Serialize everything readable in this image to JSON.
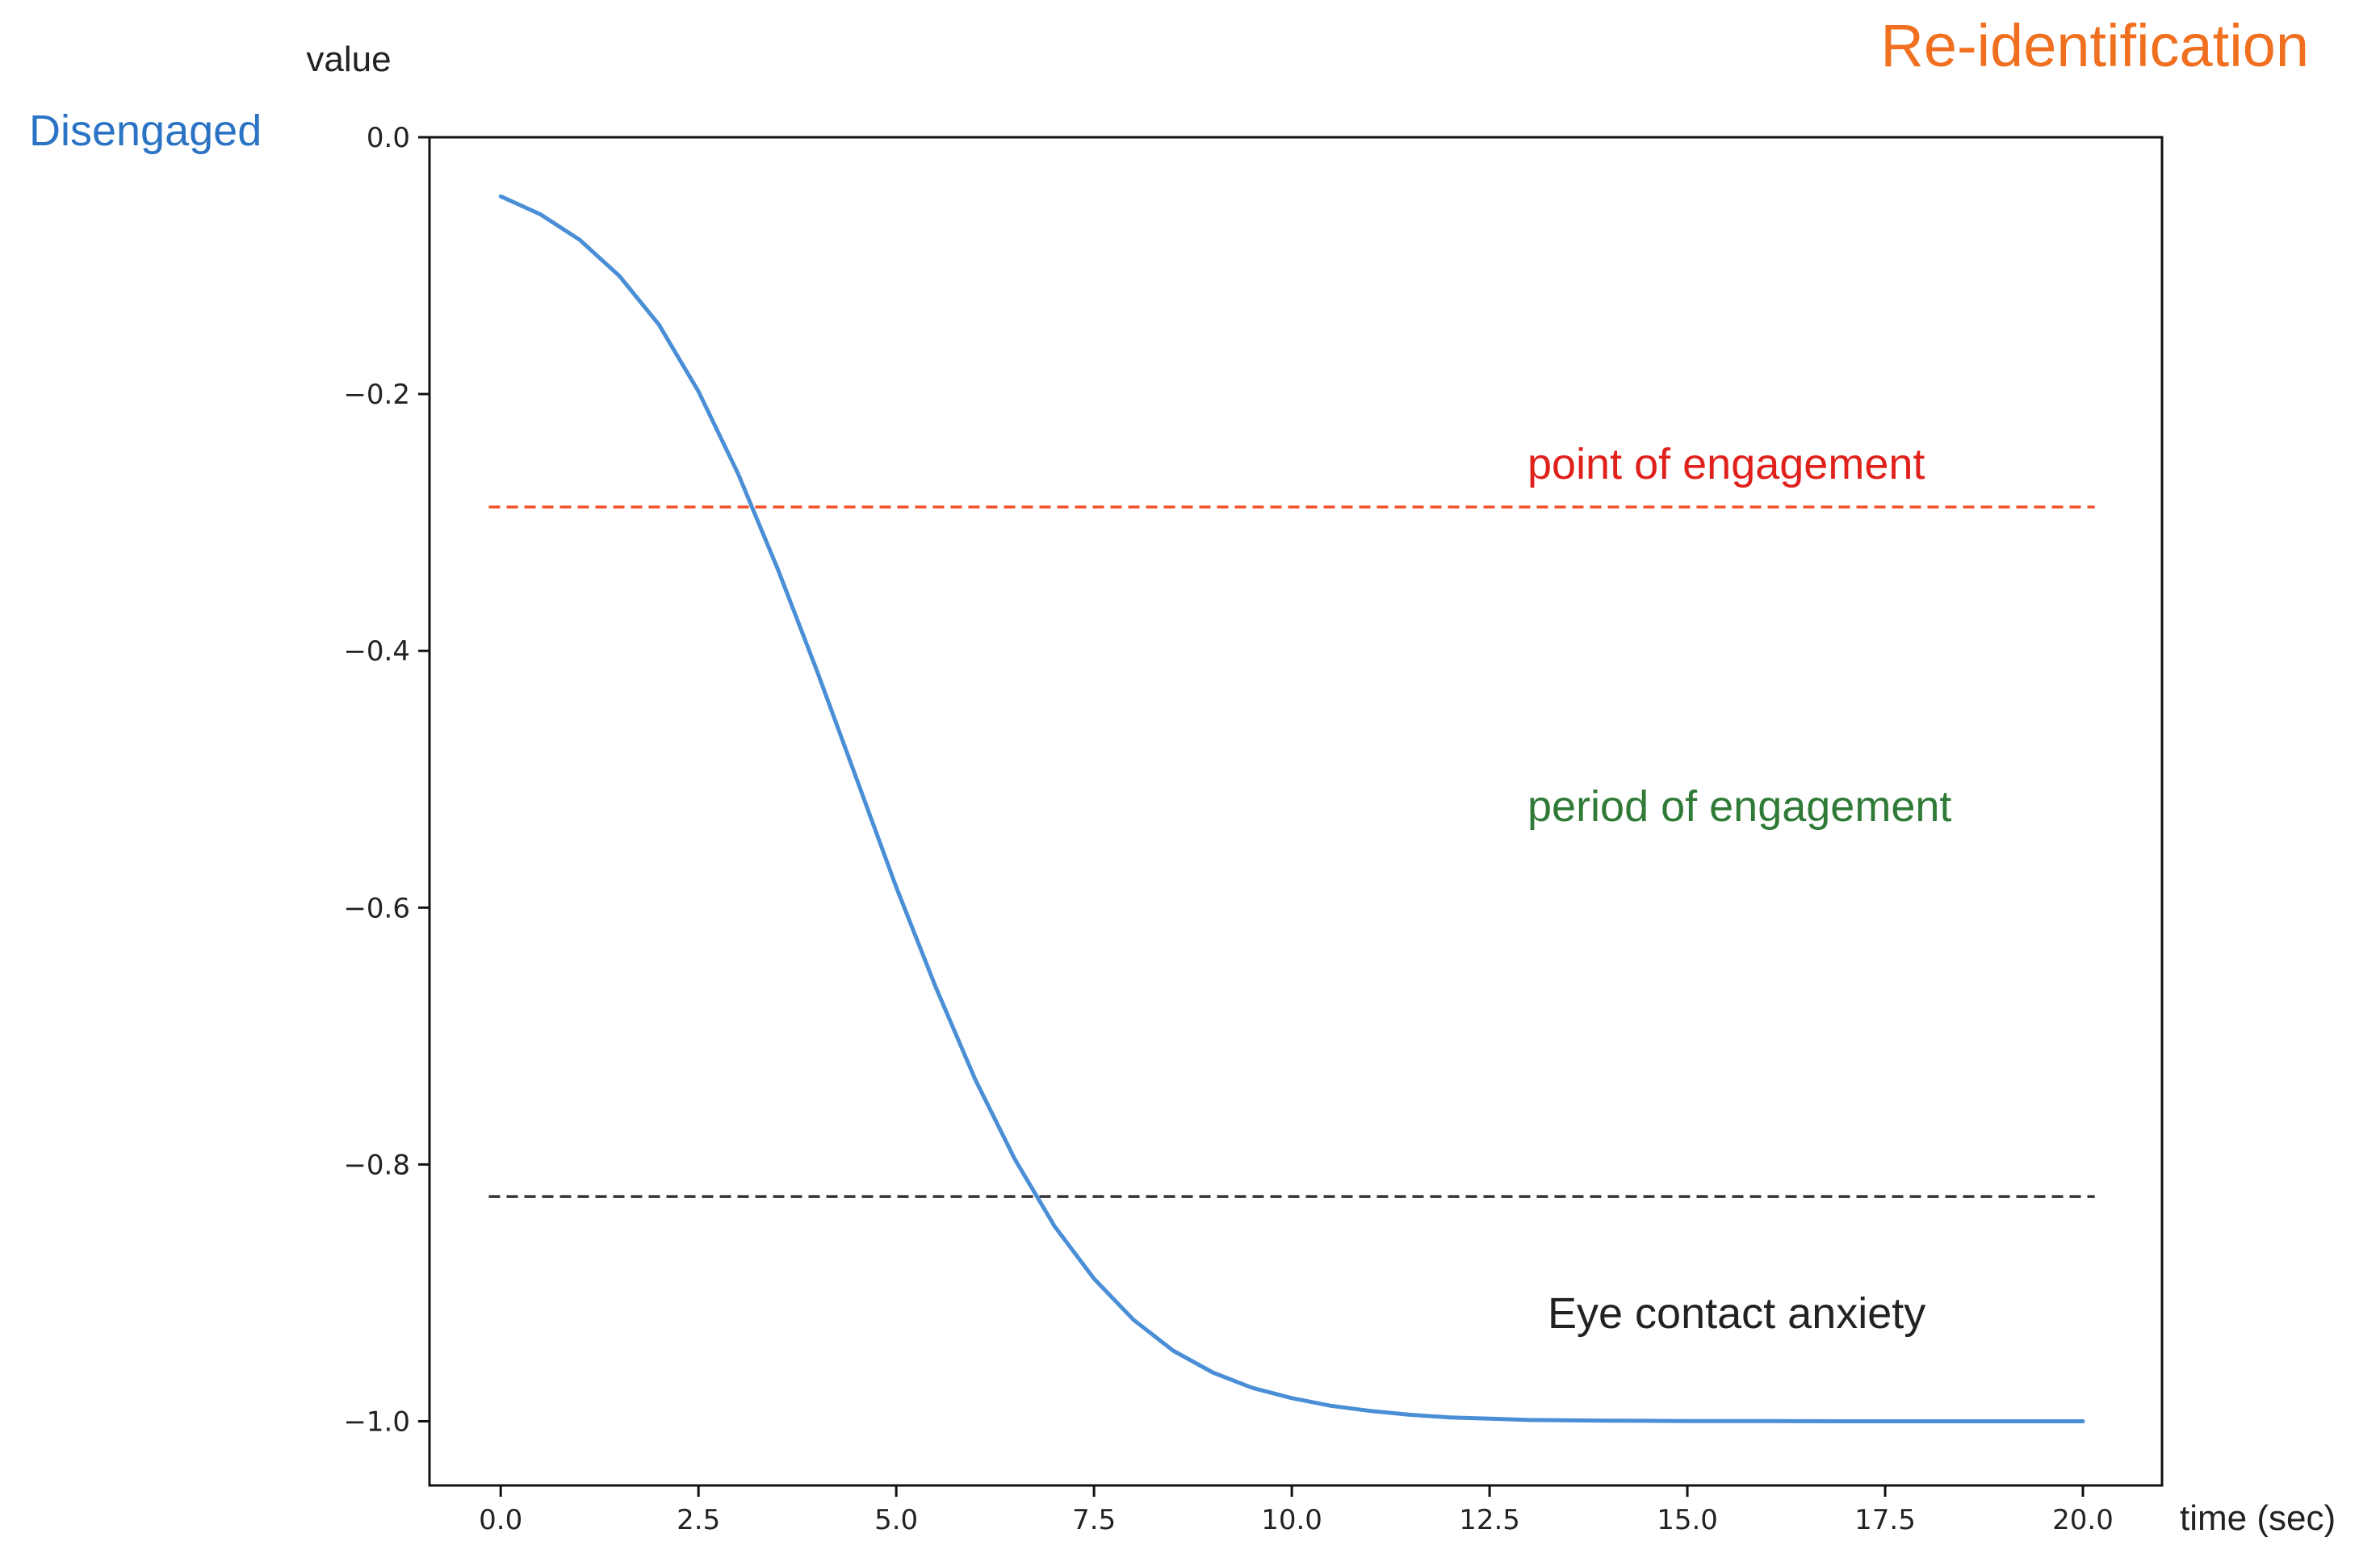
{
  "chart_data": {
    "type": "line",
    "title": "Re-identification",
    "xlabel": "time (sec)",
    "ylabel": "value",
    "xlim": [
      -0.9,
      21.0
    ],
    "ylim": [
      -1.05,
      0.0
    ],
    "xticks": [
      0.0,
      2.5,
      5.0,
      7.5,
      10.0,
      12.5,
      15.0,
      17.5,
      20.0
    ],
    "xtick_labels": [
      "0.0",
      "2.5",
      "5.0",
      "7.5",
      "10.0",
      "12.5",
      "15.0",
      "17.5",
      "20.0"
    ],
    "yticks": [
      0.0,
      -0.2,
      -0.4,
      -0.6,
      -0.8,
      -1.0
    ],
    "ytick_labels": [
      "0.0",
      "−0.2",
      "−0.4",
      "−0.6",
      "−0.8",
      "−1.0"
    ],
    "grid": false,
    "series": [
      {
        "color": "#4a8fd6",
        "x": [
          0.0,
          0.5,
          1.0,
          1.5,
          2.0,
          2.5,
          3.0,
          3.5,
          4.0,
          4.5,
          5.0,
          5.5,
          6.0,
          6.5,
          7.0,
          7.5,
          8.0,
          8.5,
          9.0,
          9.5,
          10.0,
          10.5,
          11.0,
          11.5,
          12.0,
          12.5,
          13.0,
          14.0,
          15.0,
          16.0,
          17.0,
          18.0,
          19.0,
          20.0
        ],
        "y": [
          -0.046,
          -0.06,
          -0.08,
          -0.108,
          -0.146,
          -0.198,
          -0.262,
          -0.336,
          -0.416,
          -0.5,
          -0.584,
          -0.662,
          -0.734,
          -0.796,
          -0.848,
          -0.889,
          -0.921,
          -0.945,
          -0.962,
          -0.974,
          -0.982,
          -0.988,
          -0.992,
          -0.995,
          -0.997,
          -0.998,
          -0.999,
          -0.9995,
          -0.9998,
          -0.9999,
          -1.0,
          -1.0,
          -1.0,
          -1.0
        ]
      }
    ],
    "hlines": [
      {
        "y": -0.288,
        "color": "#f0502a",
        "style": "dashed"
      },
      {
        "y": -0.825,
        "color": "#333333",
        "style": "dashed"
      }
    ],
    "annotations": [
      {
        "text": "point of engagement",
        "color": "#e0201a"
      },
      {
        "text": "period of engagement",
        "color": "#2e7a36"
      },
      {
        "text": "Eye contact anxiety",
        "color": "#222222"
      },
      {
        "text": "Disengaged",
        "color": "#2b73c4"
      }
    ],
    "title_color": "#f07020"
  }
}
